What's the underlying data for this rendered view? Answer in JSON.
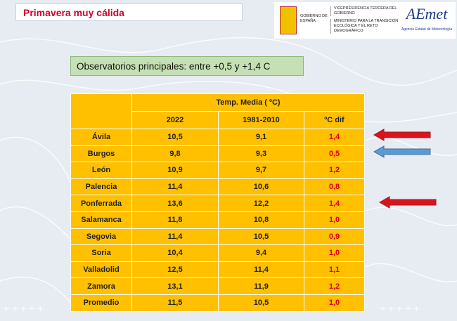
{
  "header": {
    "title": "Primavera muy cálida",
    "logo": {
      "gobierno": "GOBIERNO DE ESPAÑA",
      "vicepresidencia": "VICEPRESIDENCIA TERCERA DEL GOBIERNO",
      "ministerio": "MINISTERIO PARA LA TRANSICIÓN ECOLÓGICA Y EL RETO DEMOGRÁFICO",
      "aemet": "AEmet",
      "aemet_full": "Agencia Estatal de Meteorología"
    }
  },
  "subtitle": "Observatorios principales:  entre +0,5 y +1,4 C",
  "table": {
    "group_header": "Temp. Media ( ºC)",
    "columns": [
      "2022",
      "1981-2010",
      "ºC dif"
    ],
    "rows": [
      [
        "Ávila",
        "10,5",
        "9,1",
        "1,4"
      ],
      [
        "Burgos",
        "9,8",
        "9,3",
        "0,5"
      ],
      [
        "León",
        "10,9",
        "9,7",
        "1,2"
      ],
      [
        "Palencia",
        "11,4",
        "10,6",
        "0,8"
      ],
      [
        "Ponferrada",
        "13,6",
        "12,2",
        "1,4"
      ],
      [
        "Salamanca",
        "11,8",
        "10,8",
        "1,0"
      ],
      [
        "Segovia",
        "11,4",
        "10,5",
        "0,9"
      ],
      [
        "Soria",
        "10,4",
        "9,4",
        "1,0"
      ],
      [
        "Valladolid",
        "12,5",
        "11,4",
        "1,1"
      ],
      [
        "Zamora",
        "13,1",
        "11,9",
        "1,2"
      ],
      [
        "Promedio",
        "11,5",
        "10,5",
        "1,0"
      ]
    ]
  }
}
